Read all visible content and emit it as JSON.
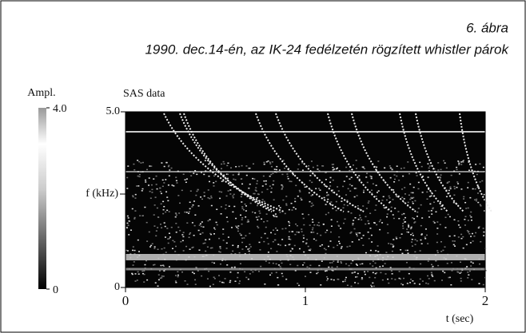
{
  "chart_data": {
    "type": "spectrogram",
    "figure_label": "6. ábra",
    "title": "1990. dec.14-én, az IK-24 fedélzetén rögzített whistler párok",
    "subtitle": "SAS data",
    "ylabel": "f (kHz)",
    "xlabel": "t (sec)",
    "xlim": [
      0,
      2
    ],
    "xticks": [
      0,
      1,
      2
    ],
    "ylim": [
      0,
      5
    ],
    "yticks": [
      0,
      {
        "value": 5,
        "label": "5.0"
      }
    ],
    "colorbar": {
      "label": "Ampl.",
      "lim": [
        0,
        4
      ],
      "ticks": [
        0,
        {
          "value": 4,
          "label": "4.0"
        }
      ]
    }
  }
}
